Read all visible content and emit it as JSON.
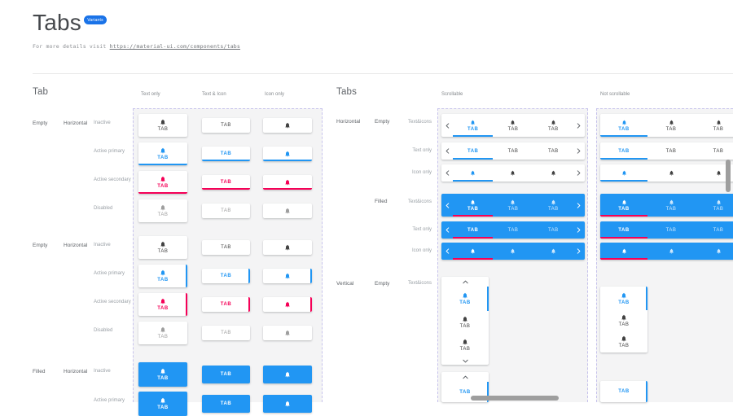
{
  "header": {
    "title": "Tabs",
    "badge": "Variants",
    "subtitle_prefix": "For more details visit ",
    "link": "https://material-ui.com/components/tabs"
  },
  "tab_label": "TAB",
  "colors": {
    "primary": "#2196F3",
    "secondary": "#F50057",
    "inactive": "#424242",
    "disabled": "#9E9E9E",
    "chevron": "#5f6368",
    "frame_bg": "#F4F4F5",
    "frame_border": "#C7C3EC",
    "badge_bg": "#1A73E8",
    "scrollbar": "#9E9E9E"
  },
  "left": {
    "heading": "Tab",
    "columns": [
      "Text only",
      "Text & Icon",
      "Icon only"
    ],
    "groups": [
      {
        "fill": "Empty",
        "orientation": "Horizontal",
        "indicator": "bottom",
        "rows": [
          "Inactive",
          "Active primary",
          "Active secondary",
          "Disabled"
        ]
      },
      {
        "fill": "Empty",
        "orientation": "Horizontal",
        "indicator": "right",
        "rows": [
          "Inactive",
          "Active primary",
          "Active secondary",
          "Disabled"
        ]
      },
      {
        "fill": "Filled",
        "orientation": "Horizontal",
        "indicator": "none",
        "rows": [
          "Inactive",
          "Active primary"
        ]
      }
    ]
  },
  "right": {
    "heading": "Tabs",
    "columns": [
      "Scrollable",
      "Not scrollable"
    ],
    "groups": [
      {
        "orientation": "Horizontal",
        "fill": "Empty",
        "rows": [
          "Text&icons",
          "Text only",
          "Icon only"
        ]
      },
      {
        "orientation": "",
        "fill": "Filled",
        "rows": [
          "Text&icons",
          "Text only",
          "Icon only"
        ]
      },
      {
        "orientation": "Vertical",
        "fill": "Empty",
        "rows": [
          "Text&icons"
        ]
      }
    ]
  }
}
